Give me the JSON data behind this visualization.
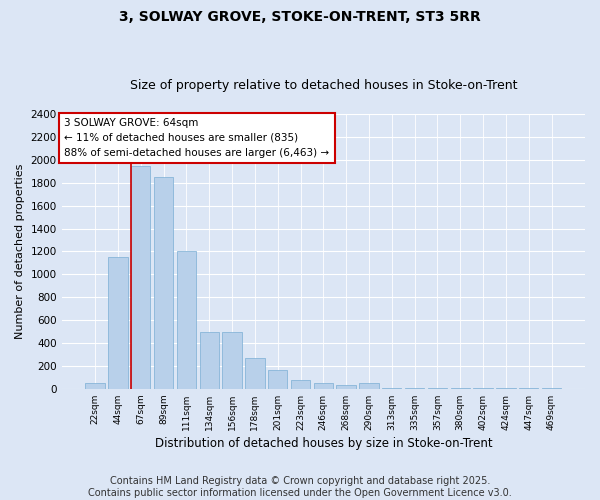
{
  "title1": "3, SOLWAY GROVE, STOKE-ON-TRENT, ST3 5RR",
  "title2": "Size of property relative to detached houses in Stoke-on-Trent",
  "xlabel": "Distribution of detached houses by size in Stoke-on-Trent",
  "ylabel": "Number of detached properties",
  "categories": [
    "22sqm",
    "44sqm",
    "67sqm",
    "89sqm",
    "111sqm",
    "134sqm",
    "156sqm",
    "178sqm",
    "201sqm",
    "223sqm",
    "246sqm",
    "268sqm",
    "290sqm",
    "313sqm",
    "335sqm",
    "357sqm",
    "380sqm",
    "402sqm",
    "424sqm",
    "447sqm",
    "469sqm"
  ],
  "values": [
    50,
    1150,
    1950,
    1850,
    1200,
    500,
    500,
    270,
    165,
    80,
    50,
    30,
    55,
    10,
    5,
    5,
    5,
    5,
    5,
    5,
    5
  ],
  "bar_color": "#b8d0ea",
  "bar_edge_color": "#7aaed4",
  "vline_color": "#cc0000",
  "vline_x": 1.575,
  "annotation_text": "3 SOLWAY GROVE: 64sqm\n← 11% of detached houses are smaller (835)\n88% of semi-detached houses are larger (6,463) →",
  "annotation_box_color": "#ffffff",
  "annotation_box_edge": "#cc0000",
  "ylim": [
    0,
    2400
  ],
  "yticks": [
    0,
    200,
    400,
    600,
    800,
    1000,
    1200,
    1400,
    1600,
    1800,
    2000,
    2200,
    2400
  ],
  "bg_color": "#dce6f5",
  "fig_color": "#dce6f5",
  "footer": "Contains HM Land Registry data © Crown copyright and database right 2025.\nContains public sector information licensed under the Open Government Licence v3.0.",
  "title_fontsize": 10,
  "subtitle_fontsize": 9,
  "footer_fontsize": 7
}
